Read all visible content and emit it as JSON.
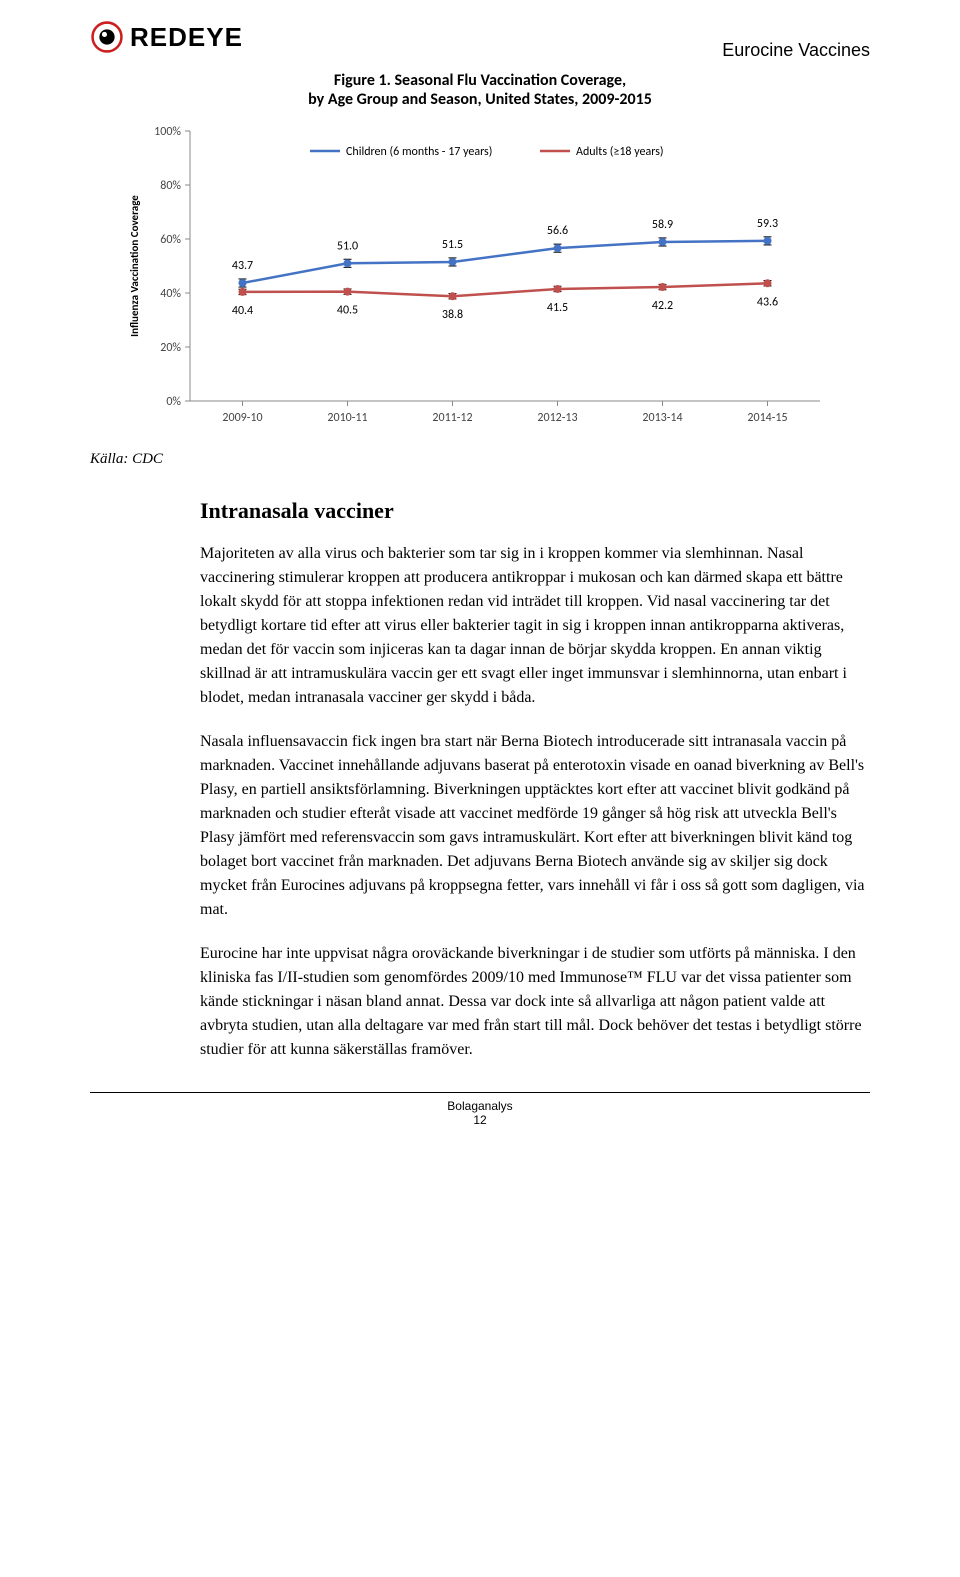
{
  "header": {
    "logo_text": "REDEYE",
    "logo_red": "#cc1f1f",
    "logo_black": "#000000",
    "company": "Eurocine Vaccines"
  },
  "chart": {
    "type": "line",
    "title": "Figure 1. Seasonal Flu Vaccination Coverage,\nby Age Group and Season, United States, 2009-2015",
    "title_fontsize": 16,
    "y_axis_title": "Influenza Vaccination Coverage",
    "ylim": [
      0,
      100
    ],
    "ytick_step": 20,
    "yticks": [
      "0%",
      "20%",
      "40%",
      "60%",
      "80%",
      "100%"
    ],
    "background_color": "#ffffff",
    "axis_color": "#888888",
    "tick_color": "#888888",
    "label_fontsize": 12,
    "line_width": 2.5,
    "marker_size": 4,
    "error_bar_cap": 4,
    "legend_position": "inside-top",
    "categories": [
      "2009-10",
      "2010-11",
      "2011-12",
      "2012-13",
      "2013-14",
      "2014-15"
    ],
    "series": [
      {
        "name": "Children (6 months - 17 years)",
        "color": "#4472c4",
        "values": [
          43.7,
          51.0,
          51.5,
          56.6,
          58.9,
          59.3
        ],
        "errors": [
          1.5,
          1.5,
          1.5,
          1.5,
          1.5,
          1.5
        ]
      },
      {
        "name": "Adults (≥18 years)",
        "color": "#c0504d",
        "values": [
          40.4,
          40.5,
          38.8,
          41.5,
          42.2,
          43.6
        ],
        "errors": [
          1.0,
          1.0,
          1.0,
          1.0,
          1.0,
          1.0
        ]
      }
    ]
  },
  "source_label": "Källa: CDC",
  "section_title": "Intranasala vacciner",
  "paragraphs": [
    "Majoriteten av alla virus och bakterier som tar sig in i kroppen kommer via slemhinnan. Nasal vaccinering stimulerar kroppen att producera antikroppar i mukosan och kan därmed skapa ett bättre lokalt skydd för att stoppa infektionen redan vid inträdet till kroppen. Vid nasal vaccinering tar det betydligt kortare tid efter att virus eller bakterier tagit in sig i kroppen innan antikropparna aktiveras, medan det för vaccin som injiceras kan ta dagar innan de börjar skydda kroppen. En annan viktig skillnad är att intramuskulära vaccin ger ett svagt eller inget immunsvar i slemhinnorna, utan enbart i blodet, medan intranasala vacciner ger skydd i båda.",
    "Nasala influensavaccin fick ingen bra start när Berna Biotech introducerade sitt intranasala vaccin på marknaden. Vaccinet innehållande adjuvans baserat på enterotoxin visade en oanad biverkning av Bell's Plasy, en partiell ansiktsförlamning. Biverkningen upptäcktes kort efter att vaccinet blivit godkänd på marknaden och studier efteråt visade att vaccinet medförde 19 gånger så hög risk att utveckla Bell's Plasy jämfört med referensvaccin som gavs intramuskulärt. Kort efter att biverkningen blivit känd tog bolaget bort vaccinet från marknaden. Det adjuvans Berna Biotech använde sig av skiljer sig dock mycket från Eurocines adjuvans på kroppsegna fetter, vars innehåll vi får i oss så gott som dagligen, via mat.",
    "Eurocine har inte uppvisat några oroväckande biverkningar i de studier som utförts på människa. I den kliniska fas I/II-studien som genomfördes 2009/10 med Immunose™ FLU var det vissa patienter som kände stickningar i näsan bland annat. Dessa var dock inte så allvarliga att någon patient valde att avbryta studien, utan alla deltagare var med från start till mål. Dock behöver det testas i betydligt större studier för att kunna säkerställas framöver."
  ],
  "footer": {
    "label": "Bolaganalys",
    "page_number": "12"
  }
}
